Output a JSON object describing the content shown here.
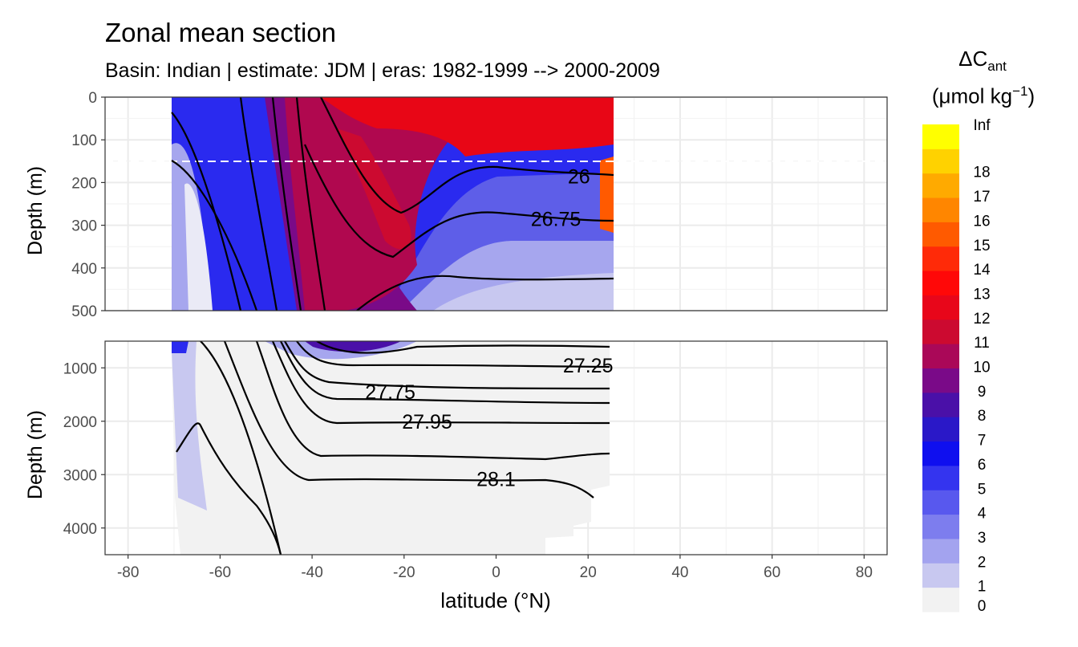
{
  "chart_data": {
    "type": "heatmap",
    "title": "Zonal mean section",
    "subtitle": "Basin: Indian | estimate: JDM  | eras: 1982-1999 --> 2000-2009",
    "xlabel": "latitude (°N)",
    "ylabel": "Depth (m)",
    "xlim": [
      -85,
      85
    ],
    "x_ticks": [
      -80,
      -60,
      -40,
      -20,
      0,
      20,
      40,
      60,
      80
    ],
    "data_x_range": [
      -70,
      25.5
    ],
    "panels": [
      {
        "name": "upper",
        "ylim": [
          0,
          500
        ],
        "y_ticks": [
          0,
          100,
          200,
          300,
          400,
          500
        ],
        "reference_depth_dashed": 150,
        "contour_labels": [
          {
            "text": "26",
            "lat": 18,
            "depth": 185
          },
          {
            "text": "26.75",
            "lat": 13,
            "depth": 285
          }
        ]
      },
      {
        "name": "lower",
        "ylim": [
          500,
          4500
        ],
        "y_ticks": [
          1000,
          2000,
          3000,
          4000
        ],
        "contour_labels": [
          {
            "text": "27.25",
            "lat": 20,
            "depth": 950
          },
          {
            "text": "27.75",
            "lat": -23,
            "depth": 1450
          },
          {
            "text": "27.95",
            "lat": -15,
            "depth": 2000
          },
          {
            "text": "28.1",
            "lat": 0,
            "depth": 3080
          }
        ]
      }
    ],
    "legend": {
      "title_main": "ΔC",
      "title_sub": "ant",
      "unit_main": "(μmol kg",
      "unit_sup": "−1",
      "unit_end": ")",
      "labels": [
        "0",
        "1",
        "2",
        "3",
        "4",
        "5",
        "6",
        "7",
        "8",
        "9",
        "10",
        "11",
        "12",
        "13",
        "14",
        "15",
        "16",
        "17",
        "18",
        "Inf"
      ],
      "colors": [
        "#f2f2f2",
        "#c8c8f0",
        "#a3a3ef",
        "#7d7dee",
        "#5858ee",
        "#3434ef",
        "#0f0fef",
        "#2a18c8",
        "#4a10a8",
        "#7a0a88",
        "#aa0858",
        "#cc0a30",
        "#e8061a",
        "#ff0808",
        "#ff2a08",
        "#ff5a00",
        "#ff8600",
        "#ffaa00",
        "#ffd200",
        "#ffff00"
      ]
    }
  }
}
